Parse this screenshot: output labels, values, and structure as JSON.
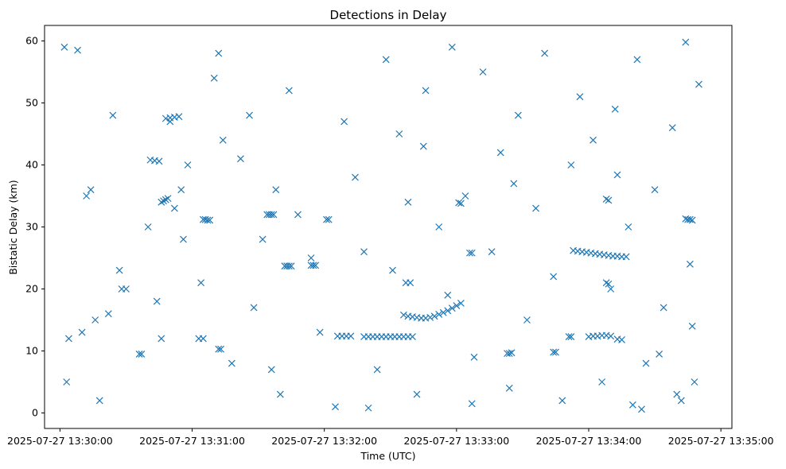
{
  "chart_data": {
    "type": "scatter",
    "title": "Detections in Delay",
    "xlabel": "Time (UTC)",
    "ylabel": "Bistatic Delay (km)",
    "x_ticks": [
      "2025-07-27 13:30:00",
      "2025-07-27 13:31:00",
      "2025-07-27 13:32:00",
      "2025-07-27 13:33:00",
      "2025-07-27 13:34:00",
      "2025-07-27 13:35:00"
    ],
    "y_ticks": [
      "0",
      "10",
      "20",
      "30",
      "40",
      "50",
      "60"
    ],
    "xlim": [
      "2025-07-27 13:29:53",
      "2025-07-27 13:35:05"
    ],
    "ylim": [
      -2.5,
      62.5
    ],
    "marker": "x",
    "color": "#1f77b4",
    "grid": false,
    "series": [
      {
        "points": [
          [
            "2025-07-27 13:30:04",
            12
          ],
          [
            "2025-07-27 13:30:10",
            13
          ],
          [
            "2025-07-27 13:30:16",
            15
          ],
          [
            "2025-07-27 13:30:22",
            16
          ],
          [
            "2025-07-27 13:30:28",
            20
          ],
          [
            "2025-07-27 13:30:30",
            20
          ],
          [
            "2025-07-27 13:30:36",
            9.5
          ],
          [
            "2025-07-27 13:30:37",
            9.5
          ],
          [
            "2025-07-27 13:30:02",
            59
          ],
          [
            "2025-07-27 13:30:08",
            58.5
          ],
          [
            "2025-07-27 13:30:12",
            35
          ],
          [
            "2025-07-27 13:30:14",
            36
          ],
          [
            "2025-07-27 13:30:24",
            48
          ],
          [
            "2025-07-27 13:30:40",
            30
          ],
          [
            "2025-07-27 13:30:46",
            12
          ],
          [
            "2025-07-27 13:30:50",
            47
          ],
          [
            "2025-07-27 13:30:55",
            36
          ],
          [
            "2025-07-27 13:30:58",
            40
          ],
          [
            "2025-07-27 13:30:03",
            5
          ],
          [
            "2025-07-27 13:30:18",
            2
          ],
          [
            "2025-07-27 13:30:27",
            23
          ],
          [
            "2025-07-27 13:30:44",
            18
          ],
          [
            "2025-07-27 13:30:52",
            33
          ],
          [
            "2025-07-27 13:30:56",
            28
          ],
          [
            "2025-07-27 13:30:41",
            40.8
          ],
          [
            "2025-07-27 13:30:43",
            40.7
          ],
          [
            "2025-07-27 13:30:45",
            40.6
          ],
          [
            "2025-07-27 13:30:46",
            34.0
          ],
          [
            "2025-07-27 13:30:47",
            34.2
          ],
          [
            "2025-07-27 13:30:48",
            34.4
          ],
          [
            "2025-07-27 13:30:49",
            34.6
          ],
          [
            "2025-07-27 13:30:48",
            47.5
          ],
          [
            "2025-07-27 13:30:50",
            47.6
          ],
          [
            "2025-07-27 13:30:52",
            47.7
          ],
          [
            "2025-07-27 13:30:54",
            47.8
          ],
          [
            "2025-07-27 13:31:05",
            31.2
          ],
          [
            "2025-07-27 13:31:06",
            31.2
          ],
          [
            "2025-07-27 13:31:07",
            31.1
          ],
          [
            "2025-07-27 13:31:08",
            31.1
          ],
          [
            "2025-07-27 13:31:04",
            21
          ],
          [
            "2025-07-27 13:31:10",
            54
          ],
          [
            "2025-07-27 13:31:14",
            44
          ],
          [
            "2025-07-27 13:31:18",
            8
          ],
          [
            "2025-07-27 13:31:22",
            41
          ],
          [
            "2025-07-27 13:31:28",
            17
          ],
          [
            "2025-07-27 13:31:32",
            28
          ],
          [
            "2025-07-27 13:31:38",
            36
          ],
          [
            "2025-07-27 13:31:40",
            3
          ],
          [
            "2025-07-27 13:31:44",
            52
          ],
          [
            "2025-07-27 13:31:48",
            32
          ],
          [
            "2025-07-27 13:31:54",
            25
          ],
          [
            "2025-07-27 13:31:58",
            13
          ],
          [
            "2025-07-27 13:31:12",
            58
          ],
          [
            "2025-07-27 13:31:26",
            48
          ],
          [
            "2025-07-27 13:31:36",
            7
          ],
          [
            "2025-07-27 13:31:34",
            32.0
          ],
          [
            "2025-07-27 13:31:35",
            32.0
          ],
          [
            "2025-07-27 13:31:36",
            32.0
          ],
          [
            "2025-07-27 13:31:37",
            32.0
          ],
          [
            "2025-07-27 13:31:42",
            23.7
          ],
          [
            "2025-07-27 13:31:43",
            23.7
          ],
          [
            "2025-07-27 13:31:44",
            23.7
          ],
          [
            "2025-07-27 13:31:45",
            23.7
          ],
          [
            "2025-07-27 13:31:54",
            23.8
          ],
          [
            "2025-07-27 13:31:55",
            23.8
          ],
          [
            "2025-07-27 13:31:56",
            23.8
          ],
          [
            "2025-07-27 13:31:03",
            12.0
          ],
          [
            "2025-07-27 13:31:05",
            12.0
          ],
          [
            "2025-07-27 13:31:12",
            10.3
          ],
          [
            "2025-07-27 13:31:13",
            10.3
          ],
          [
            "2025-07-27 13:32:01",
            31.2
          ],
          [
            "2025-07-27 13:32:02",
            31.2
          ],
          [
            "2025-07-27 13:32:05",
            1.0
          ],
          [
            "2025-07-27 13:32:09",
            47
          ],
          [
            "2025-07-27 13:32:14",
            38
          ],
          [
            "2025-07-27 13:32:18",
            26
          ],
          [
            "2025-07-27 13:32:24",
            7
          ],
          [
            "2025-07-27 13:32:28",
            57
          ],
          [
            "2025-07-27 13:32:34",
            45
          ],
          [
            "2025-07-27 13:32:38",
            34
          ],
          [
            "2025-07-27 13:32:42",
            3
          ],
          [
            "2025-07-27 13:32:46",
            52
          ],
          [
            "2025-07-27 13:32:52",
            30
          ],
          [
            "2025-07-27 13:32:56",
            19
          ],
          [
            "2025-07-27 13:32:58",
            59
          ],
          [
            "2025-07-27 13:32:20",
            0.8
          ],
          [
            "2025-07-27 13:32:31",
            23
          ],
          [
            "2025-07-27 13:32:45",
            43
          ],
          [
            "2025-07-27 13:32:06",
            12.4
          ],
          [
            "2025-07-27 13:32:08",
            12.4
          ],
          [
            "2025-07-27 13:32:10",
            12.4
          ],
          [
            "2025-07-27 13:32:12",
            12.4
          ],
          [
            "2025-07-27 13:32:18",
            12.3
          ],
          [
            "2025-07-27 13:32:20",
            12.3
          ],
          [
            "2025-07-27 13:32:22",
            12.3
          ],
          [
            "2025-07-27 13:32:24",
            12.3
          ],
          [
            "2025-07-27 13:32:26",
            12.3
          ],
          [
            "2025-07-27 13:32:28",
            12.3
          ],
          [
            "2025-07-27 13:32:30",
            12.3
          ],
          [
            "2025-07-27 13:32:32",
            12.3
          ],
          [
            "2025-07-27 13:32:34",
            12.3
          ],
          [
            "2025-07-27 13:32:36",
            12.3
          ],
          [
            "2025-07-27 13:32:38",
            12.3
          ],
          [
            "2025-07-27 13:32:40",
            12.3
          ],
          [
            "2025-07-27 13:32:36",
            15.8
          ],
          [
            "2025-07-27 13:32:38",
            15.6
          ],
          [
            "2025-07-27 13:32:40",
            15.5
          ],
          [
            "2025-07-27 13:32:42",
            15.4
          ],
          [
            "2025-07-27 13:32:44",
            15.3
          ],
          [
            "2025-07-27 13:32:46",
            15.3
          ],
          [
            "2025-07-27 13:32:48",
            15.4
          ],
          [
            "2025-07-27 13:32:50",
            15.6
          ],
          [
            "2025-07-27 13:32:52",
            15.9
          ],
          [
            "2025-07-27 13:32:54",
            16.2
          ],
          [
            "2025-07-27 13:32:56",
            16.5
          ],
          [
            "2025-07-27 13:32:58",
            16.9
          ],
          [
            "2025-07-27 13:33:00",
            17.3
          ],
          [
            "2025-07-27 13:33:02",
            17.7
          ],
          [
            "2025-07-27 13:32:37",
            21.0
          ],
          [
            "2025-07-27 13:32:39",
            21.0
          ],
          [
            "2025-07-27 13:33:04",
            35
          ],
          [
            "2025-07-27 13:33:08",
            9
          ],
          [
            "2025-07-27 13:33:12",
            55
          ],
          [
            "2025-07-27 13:33:16",
            26
          ],
          [
            "2025-07-27 13:33:20",
            42
          ],
          [
            "2025-07-27 13:33:24",
            4
          ],
          [
            "2025-07-27 13:33:28",
            48
          ],
          [
            "2025-07-27 13:33:32",
            15
          ],
          [
            "2025-07-27 13:33:36",
            33
          ],
          [
            "2025-07-27 13:33:40",
            58
          ],
          [
            "2025-07-27 13:33:44",
            22
          ],
          [
            "2025-07-27 13:33:48",
            2
          ],
          [
            "2025-07-27 13:33:52",
            40
          ],
          [
            "2025-07-27 13:33:56",
            51
          ],
          [
            "2025-07-27 13:33:07",
            1.5
          ],
          [
            "2025-07-27 13:33:26",
            37
          ],
          [
            "2025-07-27 13:33:01",
            33.9
          ],
          [
            "2025-07-27 13:33:02",
            33.8
          ],
          [
            "2025-07-27 13:33:06",
            25.8
          ],
          [
            "2025-07-27 13:33:07",
            25.8
          ],
          [
            "2025-07-27 13:33:23",
            9.6
          ],
          [
            "2025-07-27 13:33:24",
            9.6
          ],
          [
            "2025-07-27 13:33:25",
            9.7
          ],
          [
            "2025-07-27 13:33:44",
            9.8
          ],
          [
            "2025-07-27 13:33:45",
            9.8
          ],
          [
            "2025-07-27 13:33:51",
            12.3
          ],
          [
            "2025-07-27 13:33:52",
            12.3
          ],
          [
            "2025-07-27 13:33:53",
            26.2
          ],
          [
            "2025-07-27 13:33:55",
            26.1
          ],
          [
            "2025-07-27 13:33:57",
            26.0
          ],
          [
            "2025-07-27 13:33:59",
            25.9
          ],
          [
            "2025-07-27 13:34:01",
            25.8
          ],
          [
            "2025-07-27 13:34:03",
            25.7
          ],
          [
            "2025-07-27 13:34:05",
            25.6
          ],
          [
            "2025-07-27 13:34:07",
            25.5
          ],
          [
            "2025-07-27 13:34:09",
            25.4
          ],
          [
            "2025-07-27 13:34:11",
            25.3
          ],
          [
            "2025-07-27 13:34:13",
            25.3
          ],
          [
            "2025-07-27 13:34:15",
            25.2
          ],
          [
            "2025-07-27 13:34:17",
            25.2
          ],
          [
            "2025-07-27 13:34:00",
            12.3
          ],
          [
            "2025-07-27 13:34:02",
            12.4
          ],
          [
            "2025-07-27 13:34:04",
            12.4
          ],
          [
            "2025-07-27 13:34:06",
            12.5
          ],
          [
            "2025-07-27 13:34:08",
            12.5
          ],
          [
            "2025-07-27 13:34:10",
            12.4
          ],
          [
            "2025-07-27 13:34:13",
            11.9
          ],
          [
            "2025-07-27 13:34:15",
            11.8
          ],
          [
            "2025-07-27 13:34:08",
            21.0
          ],
          [
            "2025-07-27 13:34:09",
            20.8
          ],
          [
            "2025-07-27 13:34:10",
            20.0
          ],
          [
            "2025-07-27 13:34:08",
            34.5
          ],
          [
            "2025-07-27 13:34:09",
            34.3
          ],
          [
            "2025-07-27 13:34:13",
            38.4
          ],
          [
            "2025-07-27 13:34:02",
            44
          ],
          [
            "2025-07-27 13:34:06",
            5
          ],
          [
            "2025-07-27 13:34:12",
            49
          ],
          [
            "2025-07-27 13:34:18",
            30
          ],
          [
            "2025-07-27 13:34:22",
            57
          ],
          [
            "2025-07-27 13:34:26",
            8
          ],
          [
            "2025-07-27 13:34:30",
            36
          ],
          [
            "2025-07-27 13:34:34",
            17
          ],
          [
            "2025-07-27 13:34:38",
            46
          ],
          [
            "2025-07-27 13:34:42",
            2
          ],
          [
            "2025-07-27 13:34:46",
            24
          ],
          [
            "2025-07-27 13:34:50",
            53
          ],
          [
            "2025-07-27 13:34:20",
            1.3
          ],
          [
            "2025-07-27 13:34:24",
            0.6
          ],
          [
            "2025-07-27 13:34:32",
            9.5
          ],
          [
            "2025-07-27 13:34:40",
            3
          ],
          [
            "2025-07-27 13:34:44",
            31.3
          ],
          [
            "2025-07-27 13:34:45",
            31.2
          ],
          [
            "2025-07-27 13:34:46",
            31.2
          ],
          [
            "2025-07-27 13:34:47",
            31.1
          ],
          [
            "2025-07-27 13:34:44",
            59.8
          ],
          [
            "2025-07-27 13:34:48",
            5
          ],
          [
            "2025-07-27 13:34:47",
            14
          ]
        ]
      }
    ]
  }
}
